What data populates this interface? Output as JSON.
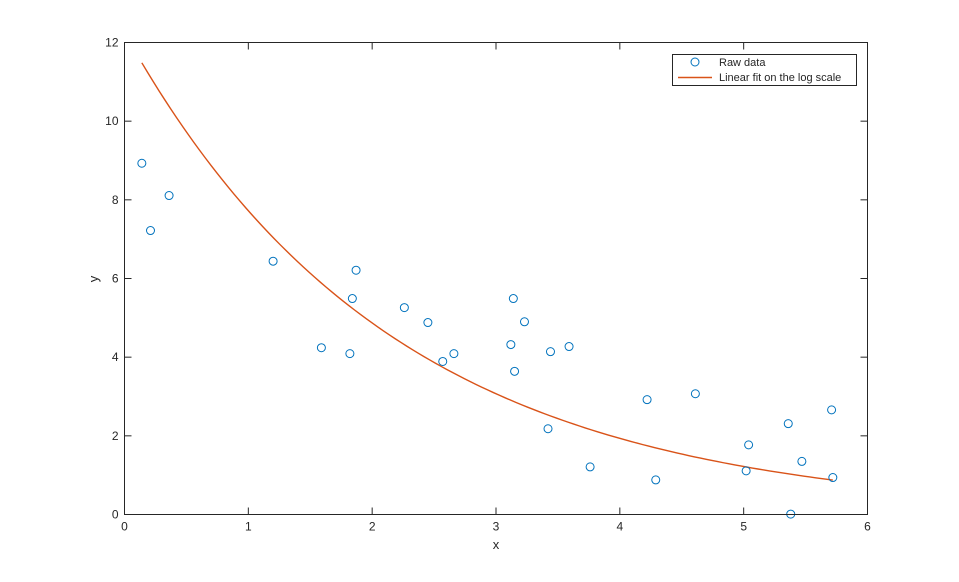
{
  "chart_data": {
    "type": "scatter",
    "xlabel": "x",
    "ylabel": "y",
    "xlim": [
      0,
      6
    ],
    "ylim": [
      0,
      12
    ],
    "xticks": [
      0,
      1,
      2,
      3,
      4,
      5,
      6
    ],
    "yticks": [
      0,
      2,
      4,
      6,
      8,
      10,
      12
    ],
    "grid": false,
    "legend_position": "top-right",
    "colors": {
      "raw": "#0072BD",
      "fit": "#D95319",
      "axis": "#262626"
    },
    "series": [
      {
        "name": "Raw data",
        "kind": "scatter",
        "marker": "open-circle",
        "points": [
          [
            0.14,
            8.93
          ],
          [
            0.21,
            7.22
          ],
          [
            0.36,
            8.11
          ],
          [
            1.2,
            6.44
          ],
          [
            1.59,
            4.24
          ],
          [
            1.82,
            4.09
          ],
          [
            1.84,
            5.49
          ],
          [
            1.87,
            6.21
          ],
          [
            2.26,
            5.26
          ],
          [
            2.45,
            4.88
          ],
          [
            2.57,
            3.89
          ],
          [
            2.66,
            4.09
          ],
          [
            3.12,
            4.32
          ],
          [
            3.14,
            5.49
          ],
          [
            3.15,
            3.64
          ],
          [
            3.23,
            4.9
          ],
          [
            3.42,
            2.18
          ],
          [
            3.44,
            4.14
          ],
          [
            3.59,
            4.27
          ],
          [
            3.76,
            1.21
          ],
          [
            4.22,
            2.92
          ],
          [
            4.29,
            0.88
          ],
          [
            4.61,
            3.07
          ],
          [
            5.02,
            1.11
          ],
          [
            5.04,
            1.77
          ],
          [
            5.36,
            2.31
          ],
          [
            5.38,
            0.01
          ],
          [
            5.47,
            1.35
          ],
          [
            5.71,
            2.66
          ],
          [
            5.72,
            0.94
          ]
        ]
      },
      {
        "name": "Linear fit on the log scale",
        "kind": "line",
        "model": "exponential",
        "x_range": [
          0.14,
          5.72
        ],
        "a": 12.25,
        "b": -0.4613
      }
    ]
  }
}
